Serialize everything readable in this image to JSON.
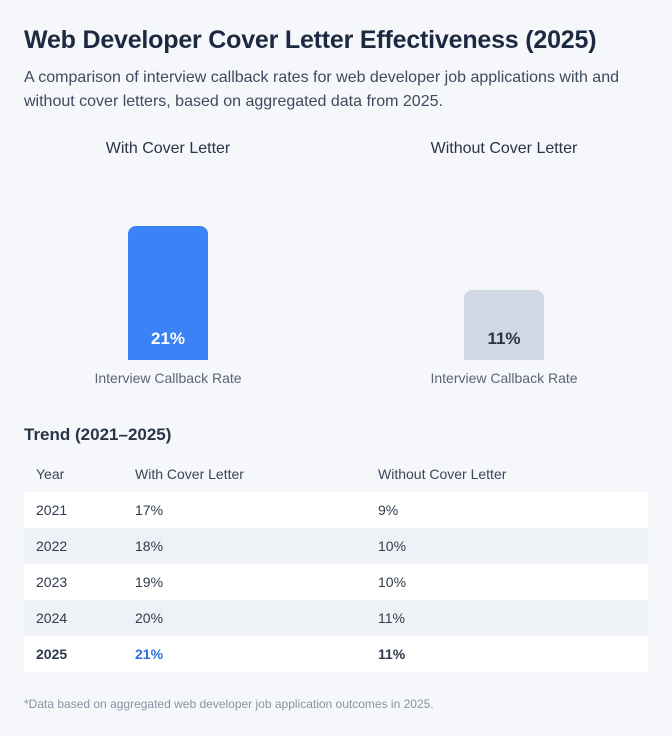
{
  "header": {
    "title": "Web Developer Cover Letter Effectiveness (2025)",
    "subtitle": "A comparison of interview callback rates for web developer job applications with and without cover letters, based on aggregated data from 2025."
  },
  "colors": {
    "with_bar": "#3b82f6",
    "without_bar": "#cfd8e3",
    "with_value_text": "#ffffff",
    "without_value_text": "#2a3447",
    "highlight": "#2f6fe0"
  },
  "chart_data": {
    "type": "bar",
    "categories": [
      "With Cover Letter",
      "Without Cover Letter"
    ],
    "values": [
      21,
      11
    ],
    "value_labels": [
      "21%",
      "11%"
    ],
    "bar_caption": "Interview Callback Rate",
    "ylim": [
      0,
      21
    ]
  },
  "trend": {
    "title": "Trend (2021–2025)",
    "columns": [
      "Year",
      "With Cover Letter",
      "Without Cover Letter"
    ],
    "rows": [
      [
        "2021",
        "17%",
        "9%"
      ],
      [
        "2022",
        "18%",
        "10%"
      ],
      [
        "2023",
        "19%",
        "10%"
      ],
      [
        "2024",
        "20%",
        "11%"
      ],
      [
        "2025",
        "21%",
        "11%"
      ]
    ]
  },
  "footnote": "*Data based on aggregated web developer job application outcomes in 2025."
}
